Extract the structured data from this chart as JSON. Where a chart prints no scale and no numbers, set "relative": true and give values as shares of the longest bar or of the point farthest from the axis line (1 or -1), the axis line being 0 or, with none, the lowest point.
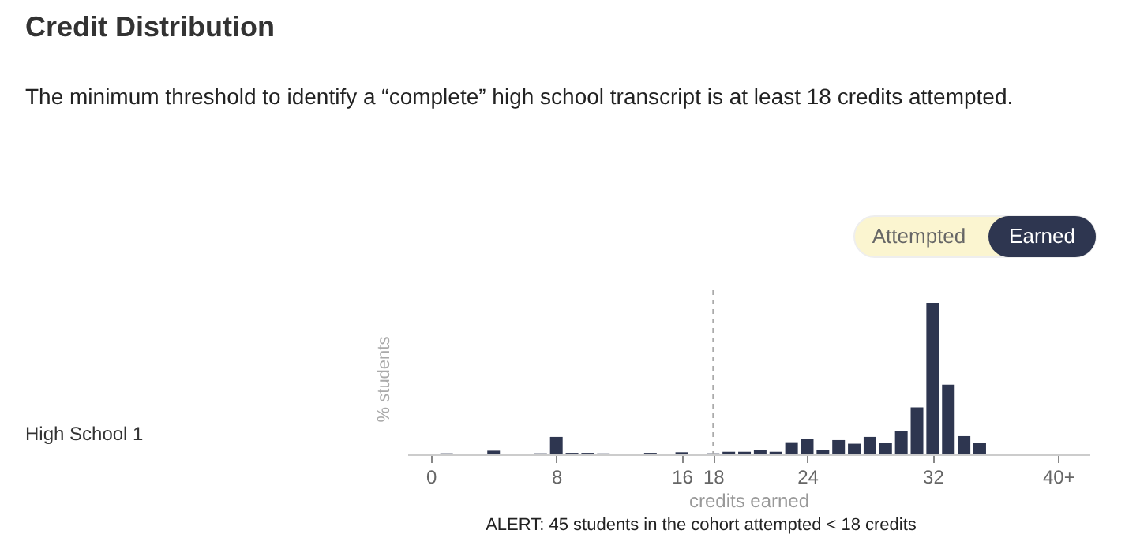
{
  "chart_data": {
    "type": "bar",
    "title": "Credit Distribution",
    "subtitle": "The minimum threshold to identify a “complete” high school transcript is at least 18 credits attempted.",
    "xlabel": "credits earned",
    "ylabel": "% students",
    "x": [
      0,
      1,
      2,
      3,
      4,
      5,
      6,
      7,
      8,
      9,
      10,
      11,
      12,
      13,
      14,
      15,
      16,
      17,
      18,
      19,
      20,
      21,
      22,
      23,
      24,
      25,
      26,
      27,
      28,
      29,
      30,
      31,
      32,
      33,
      34,
      35,
      36,
      37,
      38,
      39,
      40
    ],
    "series": [
      {
        "name": "High School 1",
        "color": "#2e3650",
        "values": [
          0,
          0.007,
          0.003,
          0.003,
          0.024,
          0.005,
          0.005,
          0.007,
          0.115,
          0.01,
          0.01,
          0.007,
          0.005,
          0.005,
          0.01,
          0.003,
          0.014,
          0.003,
          0.007,
          0.017,
          0.017,
          0.03,
          0.017,
          0.08,
          0.1,
          0.03,
          0.094,
          0.07,
          0.115,
          0.073,
          0.156,
          0.31,
          1,
          0.46,
          0.12,
          0.073,
          0.003,
          0.003,
          0.003,
          0.003,
          0
        ]
      }
    ],
    "relative": true,
    "xlim": [
      -1.5,
      42
    ],
    "xticks": [
      0,
      8,
      16,
      18,
      24,
      32,
      {
        "value": 40,
        "label": "40+"
      }
    ],
    "ref_lines": [
      {
        "axis": "x",
        "value": 18,
        "color": "#aaaaaa",
        "line_style": "dashed"
      }
    ],
    "annotations": [
      "Attempted",
      "Earned",
      "ALERT: 45 students in the cohort attempted < 18 credits"
    ],
    "grid": false
  }
}
